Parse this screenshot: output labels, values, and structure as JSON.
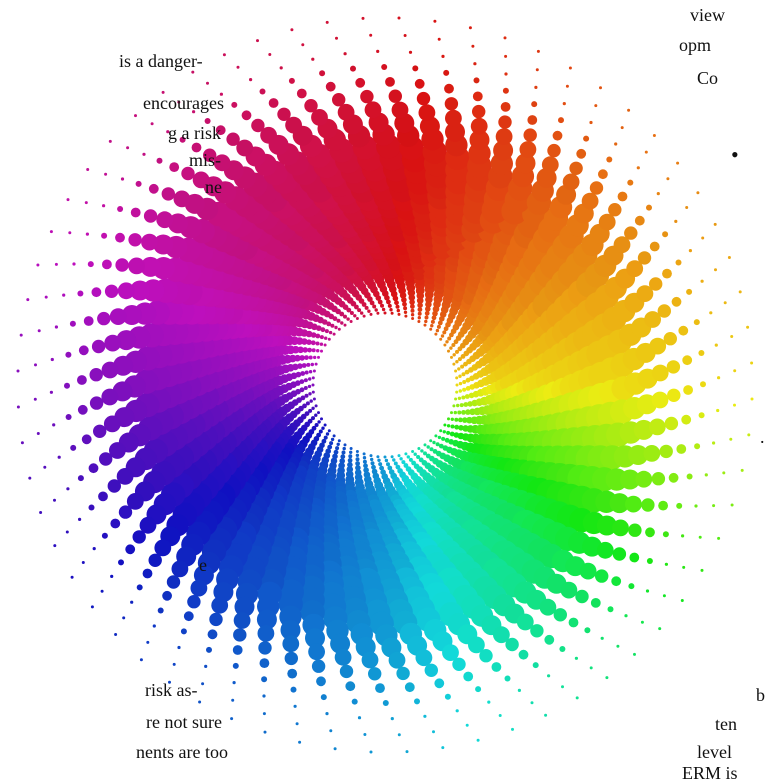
{
  "left_text": {
    "lines": [
      "is a danger-",
      "encourages",
      "g a risk",
      "mis-",
      "ne",
      "e",
      "risk as-",
      "re not sure",
      "nents are too"
    ]
  },
  "right_text": {
    "lines": [
      "view",
      "opm",
      "Co",
      "•",
      ".",
      "b",
      "ten",
      "level",
      "ERM is"
    ]
  }
}
